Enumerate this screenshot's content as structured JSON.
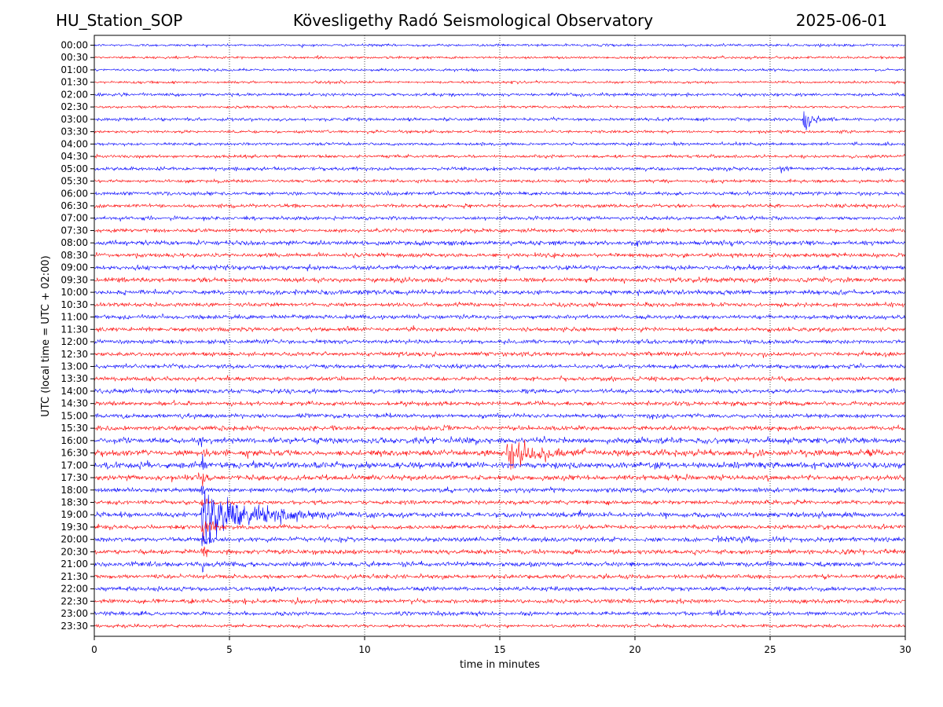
{
  "header": {
    "station": "HU_Station_SOP",
    "observatory": "Kövesligethy Radó Seismological Observatory",
    "date": "2025-06-01"
  },
  "chart_data": {
    "type": "line",
    "subtype": "helicorder",
    "xlabel": "time in minutes",
    "ylabel": "UTC (local time = UTC + 02:00)",
    "xlim": [
      0,
      30
    ],
    "x_ticks": [
      "0",
      "5",
      "10",
      "15",
      "20",
      "25",
      "30"
    ],
    "grid": "vertical dotted at every 5 minutes",
    "trace_colors": [
      "#0000ff",
      "#ff0000"
    ],
    "rows": [
      "00:00",
      "00:30",
      "01:00",
      "01:30",
      "02:00",
      "02:30",
      "03:00",
      "03:30",
      "04:00",
      "04:30",
      "05:00",
      "05:30",
      "06:00",
      "06:30",
      "07:00",
      "07:30",
      "08:00",
      "08:30",
      "09:00",
      "09:30",
      "10:00",
      "10:30",
      "11:00",
      "11:30",
      "12:00",
      "12:30",
      "13:00",
      "13:30",
      "14:00",
      "14:30",
      "15:00",
      "15:30",
      "16:00",
      "16:30",
      "17:00",
      "17:30",
      "18:00",
      "18:30",
      "19:00",
      "19:30",
      "20:00",
      "20:30",
      "21:00",
      "21:30",
      "22:00",
      "22:30",
      "23:00",
      "23:30"
    ],
    "row_noise_amplitude": [
      0.12,
      0.12,
      0.12,
      0.12,
      0.14,
      0.12,
      0.15,
      0.13,
      0.14,
      0.14,
      0.17,
      0.15,
      0.17,
      0.17,
      0.17,
      0.17,
      0.22,
      0.2,
      0.22,
      0.22,
      0.22,
      0.2,
      0.2,
      0.2,
      0.2,
      0.2,
      0.2,
      0.2,
      0.2,
      0.2,
      0.2,
      0.22,
      0.28,
      0.3,
      0.3,
      0.25,
      0.22,
      0.2,
      0.25,
      0.2,
      0.22,
      0.22,
      0.22,
      0.2,
      0.2,
      0.2,
      0.18,
      0.15
    ],
    "events": [
      {
        "row": "03:00",
        "start_min": 26.2,
        "duration_min": 1.5,
        "amplitude": 1.2
      },
      {
        "row": "03:30",
        "start_min": 27.6,
        "duration_min": 0.8,
        "amplitude": 0.35
      },
      {
        "row": "05:00",
        "start_min": 25.3,
        "duration_min": 0.9,
        "amplitude": 0.45
      },
      {
        "row": "09:30",
        "start_min": 0.8,
        "duration_min": 1.2,
        "amplitude": 0.3
      },
      {
        "row": "16:00",
        "start_min": 3.9,
        "duration_min": 0.3,
        "amplitude": 1.5
      },
      {
        "row": "16:30",
        "start_min": 15.2,
        "duration_min": 4.0,
        "amplitude": 1.6
      },
      {
        "row": "16:30",
        "start_min": 3.9,
        "duration_min": 0.5,
        "amplitude": 1.2
      },
      {
        "row": "17:00",
        "start_min": 3.95,
        "duration_min": 0.6,
        "amplitude": 1.4
      },
      {
        "row": "17:30",
        "start_min": 3.95,
        "duration_min": 0.5,
        "amplitude": 1.2
      },
      {
        "row": "18:00",
        "start_min": 3.95,
        "duration_min": 0.5,
        "amplitude": 1.2
      },
      {
        "row": "18:30",
        "start_min": 3.95,
        "duration_min": 0.5,
        "amplitude": 1.5
      },
      {
        "row": "19:00",
        "start_min": 3.95,
        "duration_min": 6.5,
        "amplitude": 2.8
      },
      {
        "row": "19:00",
        "start_min": 6.8,
        "duration_min": 1.5,
        "amplitude": 0.8
      },
      {
        "row": "19:00",
        "start_min": 14.6,
        "duration_min": 0.4,
        "amplitude": 0.35
      },
      {
        "row": "19:30",
        "start_min": 3.95,
        "duration_min": 1.2,
        "amplitude": 2.0
      },
      {
        "row": "20:00",
        "start_min": 3.95,
        "duration_min": 1.0,
        "amplitude": 1.6
      },
      {
        "row": "20:00",
        "start_min": 23.0,
        "duration_min": 4.5,
        "amplitude": 0.35
      },
      {
        "row": "20:30",
        "start_min": 3.95,
        "duration_min": 0.8,
        "amplitude": 1.2
      },
      {
        "row": "20:30",
        "start_min": 27.5,
        "duration_min": 1.5,
        "amplitude": 0.35
      },
      {
        "row": "21:00",
        "start_min": 3.95,
        "duration_min": 0.5,
        "amplitude": 1.0
      },
      {
        "row": "21:30",
        "start_min": 3.95,
        "duration_min": 0.2,
        "amplitude": 0.6
      },
      {
        "row": "22:30",
        "start_min": 7.4,
        "duration_min": 0.8,
        "amplitude": 0.55
      },
      {
        "row": "23:00",
        "start_min": 23.0,
        "duration_min": 1.8,
        "amplitude": 0.3
      }
    ]
  }
}
